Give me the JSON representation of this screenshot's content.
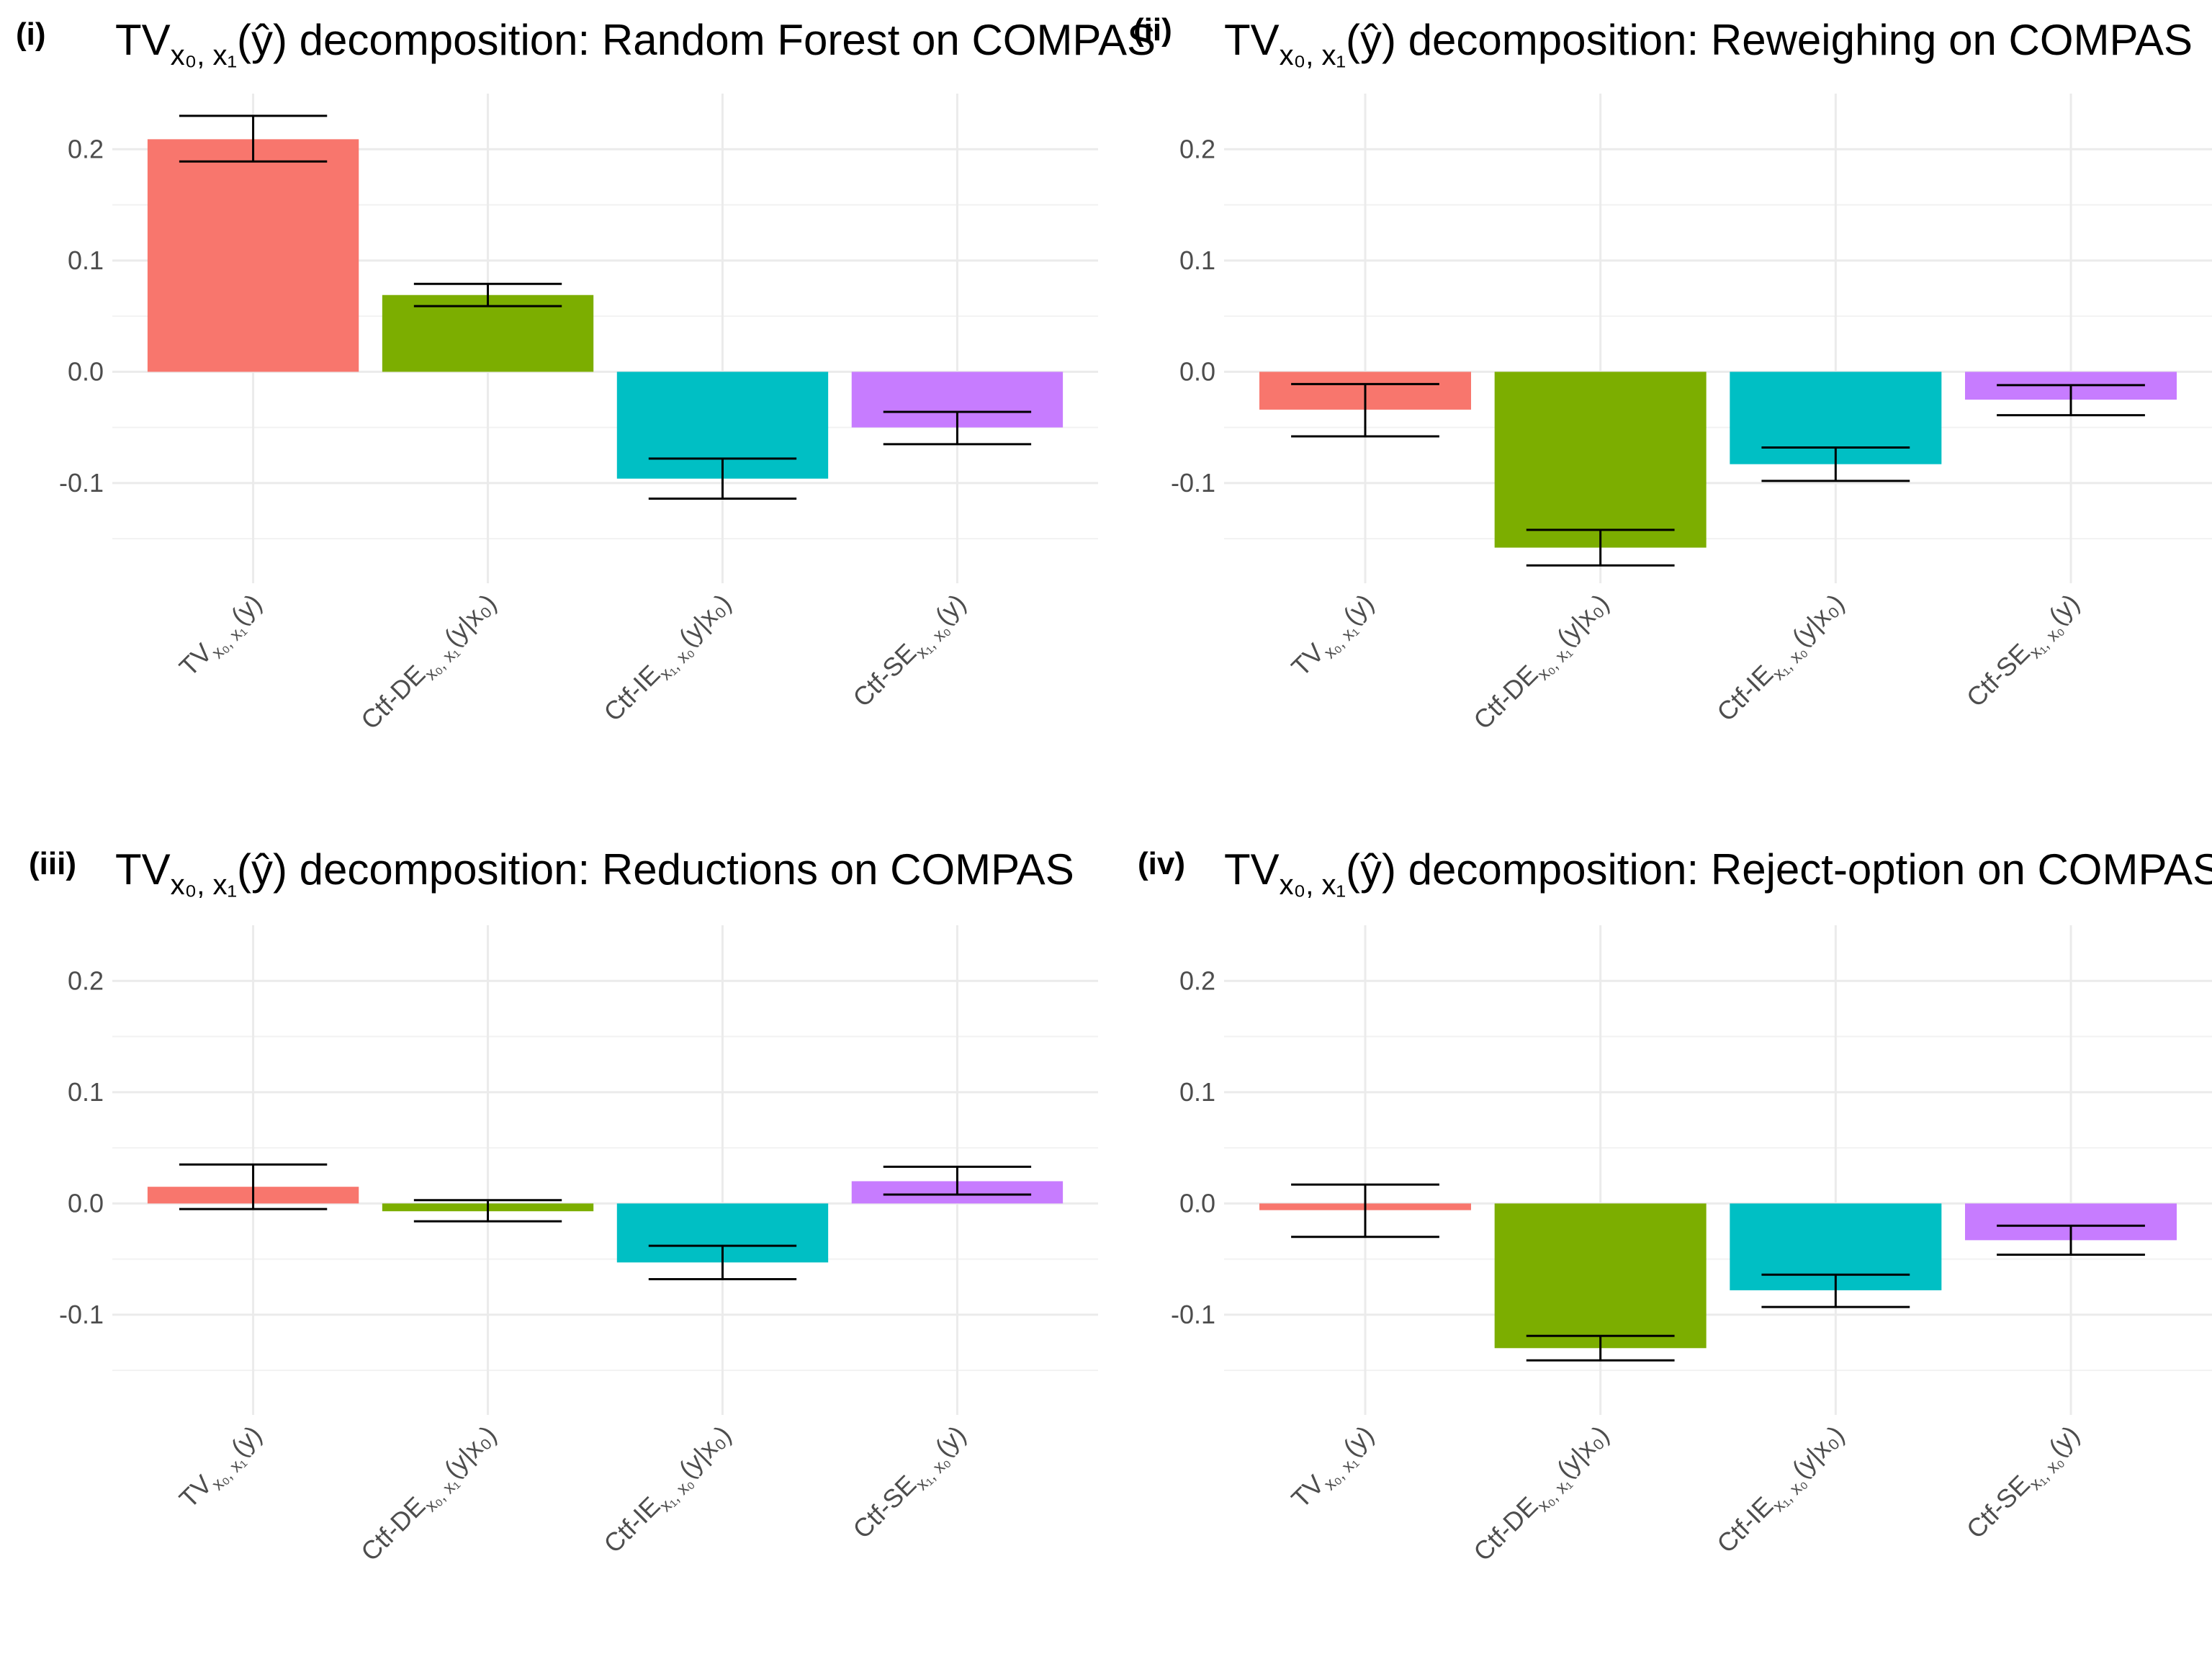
{
  "chart_data": [
    {
      "type": "bar",
      "panel_label": "(i)",
      "title": {
        "prefix": "TV",
        "sub": "x₀, x₁",
        "arg": "(ŷ)",
        "rest": " decomposition: Random Forest on COMPAS"
      },
      "categories": [
        {
          "main": "TV",
          "sub": "x₀, x₁",
          "arg": "(y)"
        },
        {
          "main": "Ctf-DE",
          "sub": "x₀, x₁",
          "arg": "(y|x₀)"
        },
        {
          "main": "Ctf-IE",
          "sub": "x₁, x₀",
          "arg": "(y|x₀)"
        },
        {
          "main": "Ctf-SE",
          "sub": "x₁, x₀",
          "arg": "(y)"
        }
      ],
      "values": [
        0.209,
        0.069,
        -0.096,
        -0.05
      ],
      "error_low": [
        0.189,
        0.059,
        -0.114,
        -0.065
      ],
      "error_high": [
        0.23,
        0.079,
        -0.078,
        -0.036
      ],
      "colors": [
        "#F8766D",
        "#7CAE00",
        "#00BFC4",
        "#C77CFF"
      ],
      "ylim": [
        -0.19,
        0.25
      ],
      "yticks": [
        -0.1,
        0.0,
        0.1,
        0.2
      ],
      "ytick_labels": [
        "-0.1",
        "0.0",
        "0.1",
        "0.2"
      ],
      "xlabel": "",
      "ylabel": "",
      "legend": "none",
      "grid": true
    },
    {
      "type": "bar",
      "panel_label": "(ii)",
      "title": {
        "prefix": "TV",
        "sub": "x₀, x₁",
        "arg": "(ŷ)",
        "rest": " decomposition: Reweighing on COMPAS"
      },
      "categories": [
        {
          "main": "TV",
          "sub": "x₀, x₁",
          "arg": "(y)"
        },
        {
          "main": "Ctf-DE",
          "sub": "x₀, x₁",
          "arg": "(y|x₀)"
        },
        {
          "main": "Ctf-IE",
          "sub": "x₁, x₀",
          "arg": "(y|x₀)"
        },
        {
          "main": "Ctf-SE",
          "sub": "x₁, x₀",
          "arg": "(y)"
        }
      ],
      "values": [
        -0.034,
        -0.158,
        -0.083,
        -0.025
      ],
      "error_low": [
        -0.058,
        -0.174,
        -0.098,
        -0.039
      ],
      "error_high": [
        -0.011,
        -0.142,
        -0.068,
        -0.012
      ],
      "colors": [
        "#F8766D",
        "#7CAE00",
        "#00BFC4",
        "#C77CFF"
      ],
      "ylim": [
        -0.19,
        0.25
      ],
      "yticks": [
        -0.1,
        0.0,
        0.1,
        0.2
      ],
      "ytick_labels": [
        "-0.1",
        "0.0",
        "0.1",
        "0.2"
      ],
      "xlabel": "",
      "ylabel": "",
      "legend": "none",
      "grid": true
    },
    {
      "type": "bar",
      "panel_label": "(iii)",
      "title": {
        "prefix": "TV",
        "sub": "x₀, x₁",
        "arg": "(ŷ)",
        "rest": " decomposition: Reductions on COMPAS"
      },
      "categories": [
        {
          "main": "TV",
          "sub": "x₀, x₁",
          "arg": "(y)"
        },
        {
          "main": "Ctf-DE",
          "sub": "x₀, x₁",
          "arg": "(y|x₀)"
        },
        {
          "main": "Ctf-IE",
          "sub": "x₁, x₀",
          "arg": "(y|x₀)"
        },
        {
          "main": "Ctf-SE",
          "sub": "x₁, x₀",
          "arg": "(y)"
        }
      ],
      "values": [
        0.015,
        -0.007,
        -0.053,
        0.02
      ],
      "error_low": [
        -0.005,
        -0.016,
        -0.068,
        0.008
      ],
      "error_high": [
        0.035,
        0.003,
        -0.038,
        0.033
      ],
      "colors": [
        "#F8766D",
        "#7CAE00",
        "#00BFC4",
        "#C77CFF"
      ],
      "ylim": [
        -0.19,
        0.25
      ],
      "yticks": [
        -0.1,
        0.0,
        0.1,
        0.2
      ],
      "ytick_labels": [
        "-0.1",
        "0.0",
        "0.1",
        "0.2"
      ],
      "xlabel": "",
      "ylabel": "",
      "legend": "none",
      "grid": true
    },
    {
      "type": "bar",
      "panel_label": "(iv)",
      "title": {
        "prefix": "TV",
        "sub": "x₀, x₁",
        "arg": "(ŷ)",
        "rest": " decomposition: Reject-option on COMPAS"
      },
      "categories": [
        {
          "main": "TV",
          "sub": "x₀, x₁",
          "arg": "(y)"
        },
        {
          "main": "Ctf-DE",
          "sub": "x₀, x₁",
          "arg": "(y|x₀)"
        },
        {
          "main": "Ctf-IE",
          "sub": "x₁, x₀",
          "arg": "(y|x₀)"
        },
        {
          "main": "Ctf-SE",
          "sub": "x₁, x₀",
          "arg": "(y)"
        }
      ],
      "values": [
        -0.006,
        -0.13,
        -0.078,
        -0.033
      ],
      "error_low": [
        -0.03,
        -0.141,
        -0.093,
        -0.046
      ],
      "error_high": [
        0.017,
        -0.119,
        -0.064,
        -0.02
      ],
      "colors": [
        "#F8766D",
        "#7CAE00",
        "#00BFC4",
        "#C77CFF"
      ],
      "ylim": [
        -0.19,
        0.25
      ],
      "yticks": [
        -0.1,
        0.0,
        0.1,
        0.2
      ],
      "ytick_labels": [
        "-0.1",
        "0.0",
        "0.1",
        "0.2"
      ],
      "xlabel": "",
      "ylabel": "",
      "legend": "none",
      "grid": true
    }
  ]
}
